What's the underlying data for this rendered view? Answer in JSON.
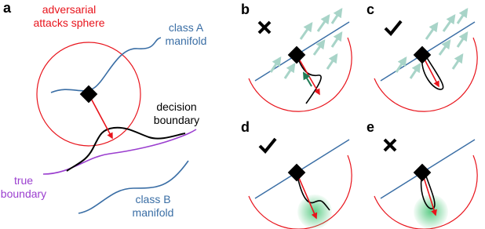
{
  "panel_a": {
    "letter": "a",
    "sphere_label": [
      "adversarial",
      "attacks sphere"
    ],
    "class_a_label": [
      "class A",
      "manifold"
    ],
    "decision_label": [
      "decision",
      "boundary"
    ],
    "true_label": [
      "true",
      "boundary"
    ],
    "class_b_label": [
      "class B",
      "manifold"
    ]
  },
  "panels": [
    {
      "letter": "b"
    },
    {
      "letter": "c"
    },
    {
      "letter": "d"
    },
    {
      "letter": "e"
    }
  ]
}
